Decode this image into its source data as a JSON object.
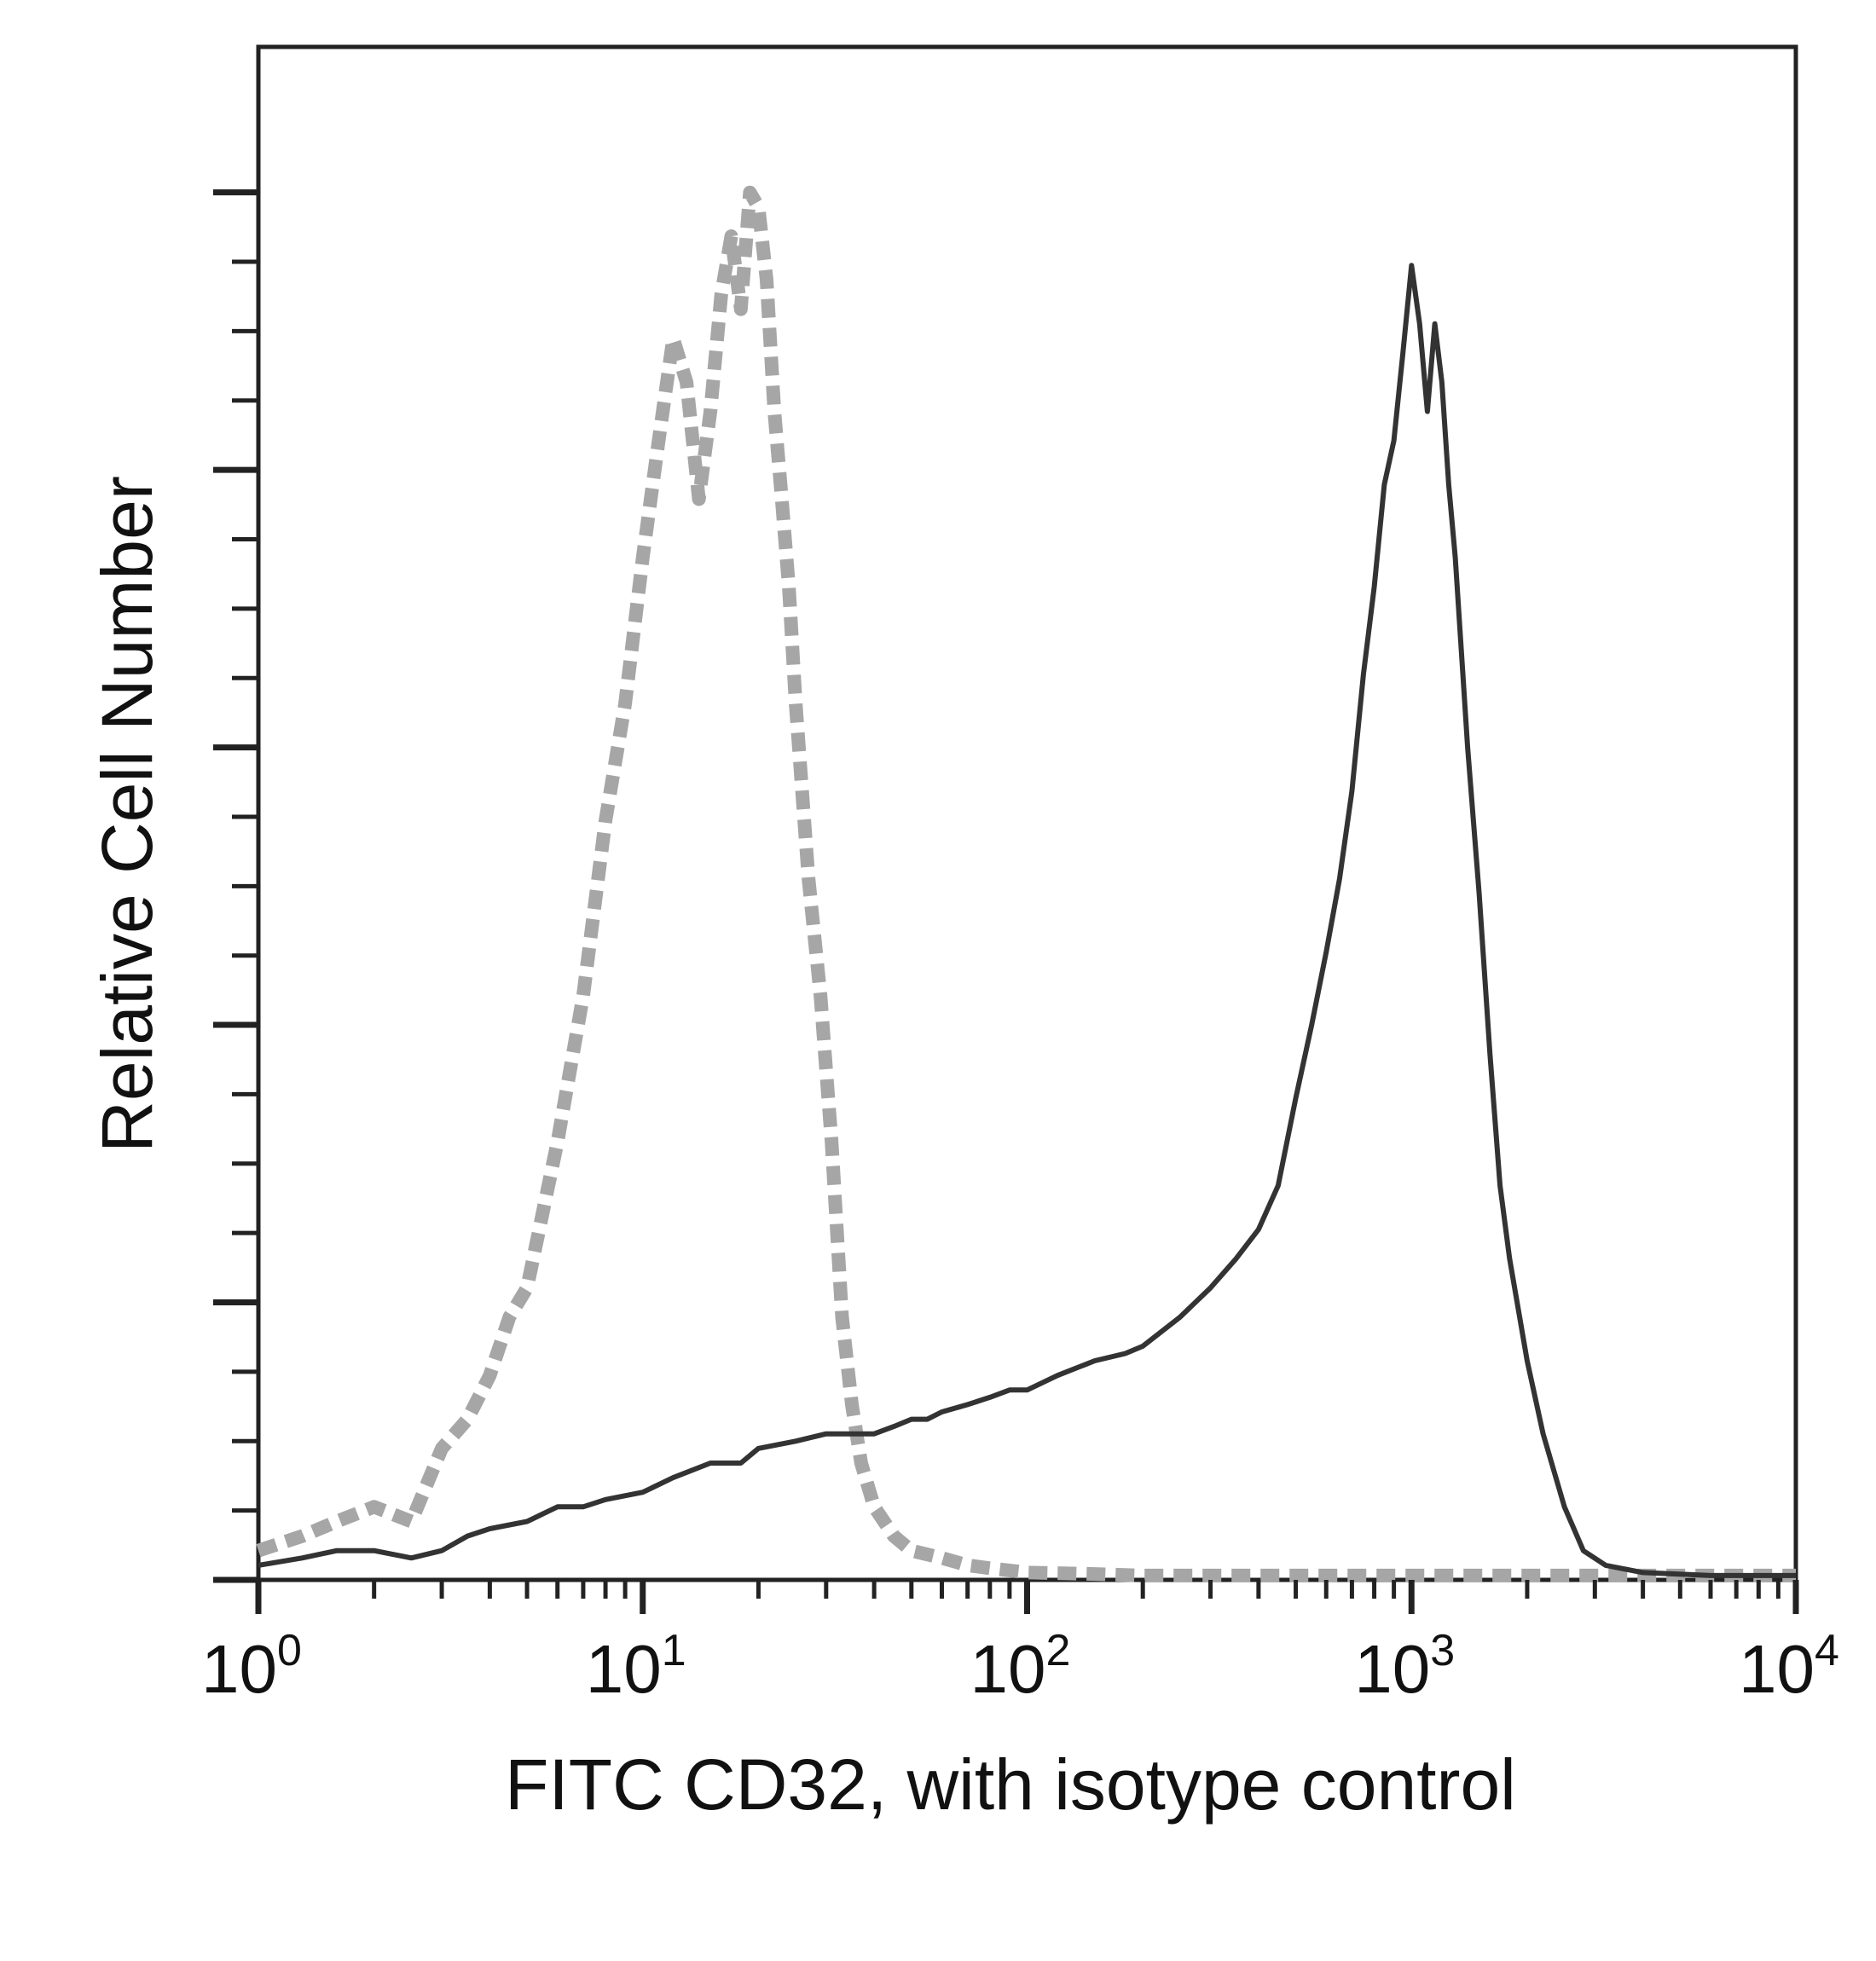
{
  "chart_data": {
    "type": "line",
    "title": "",
    "xlabel": "FITC CD32, with isotype control",
    "ylabel": "Relative Cell Number",
    "x_scale": "log",
    "xlim": [
      1,
      10000
    ],
    "ylim": [
      0,
      100
    ],
    "grid": false,
    "legend": "none",
    "x_ticks": [
      {
        "value": 1,
        "base": "10",
        "exp": "0"
      },
      {
        "value": 10,
        "base": "10",
        "exp": "1"
      },
      {
        "value": 100,
        "base": "10",
        "exp": "2"
      },
      {
        "value": 1000,
        "base": "10",
        "exp": "3"
      },
      {
        "value": 10000,
        "base": "10",
        "exp": "4"
      }
    ],
    "y_major_ticks": [
      0,
      19,
      38,
      57,
      76,
      95
    ],
    "y_minor_step": 4.75,
    "series": [
      {
        "style": "dashed",
        "color": "#a6a6a6",
        "x": [
          1,
          1.3,
          1.6,
          2,
          2.5,
          3,
          3.5,
          4,
          4.5,
          5,
          6,
          7,
          8,
          9,
          10,
          11,
          12,
          13,
          14,
          15,
          16,
          17,
          18,
          19,
          20,
          21,
          22,
          23,
          24,
          25,
          27,
          29,
          31,
          33,
          35,
          37,
          40,
          45,
          50,
          60,
          70,
          80,
          100,
          150,
          200,
          500,
          1000,
          10000
        ],
        "y": [
          2,
          3,
          4,
          5,
          4,
          9,
          11,
          14,
          18,
          20,
          30,
          40,
          52,
          60,
          70,
          78,
          85,
          82,
          74,
          80,
          88,
          92,
          87,
          95,
          94,
          89,
          80,
          74,
          68,
          60,
          48,
          40,
          30,
          18,
          12,
          8,
          5,
          3,
          2,
          1.5,
          1,
          0.8,
          0.5,
          0.4,
          0.3,
          0.3,
          0.3,
          0.3
        ]
      },
      {
        "style": "solid",
        "color": "#333333",
        "x": [
          1,
          1.3,
          1.6,
          2,
          2.5,
          3,
          3.5,
          4,
          5,
          6,
          7,
          8,
          10,
          12,
          15,
          18,
          20,
          25,
          30,
          35,
          40,
          45,
          50,
          55,
          60,
          70,
          80,
          90,
          100,
          120,
          150,
          180,
          200,
          250,
          300,
          350,
          400,
          450,
          500,
          550,
          600,
          650,
          700,
          750,
          800,
          850,
          900,
          950,
          1000,
          1050,
          1100,
          1150,
          1200,
          1250,
          1300,
          1400,
          1500,
          1600,
          1700,
          1800,
          2000,
          2200,
          2500,
          2800,
          3200,
          4000,
          6000,
          10000
        ],
        "y": [
          1,
          1.5,
          2,
          2,
          1.5,
          2,
          3,
          3.5,
          4,
          5,
          5,
          5.5,
          6,
          7,
          8,
          8,
          9,
          9.5,
          10,
          10,
          10,
          10.5,
          11,
          11,
          11.5,
          12,
          12.5,
          13,
          13,
          14,
          15,
          15.5,
          16,
          18,
          20,
          22,
          24,
          27,
          33,
          38,
          43,
          48,
          54,
          62,
          68,
          75,
          78,
          84,
          90,
          86,
          80,
          86,
          82,
          75,
          70,
          57,
          47,
          36,
          27,
          22,
          15,
          10,
          5,
          2,
          1,
          0.5,
          0.3,
          0.3
        ]
      }
    ]
  }
}
